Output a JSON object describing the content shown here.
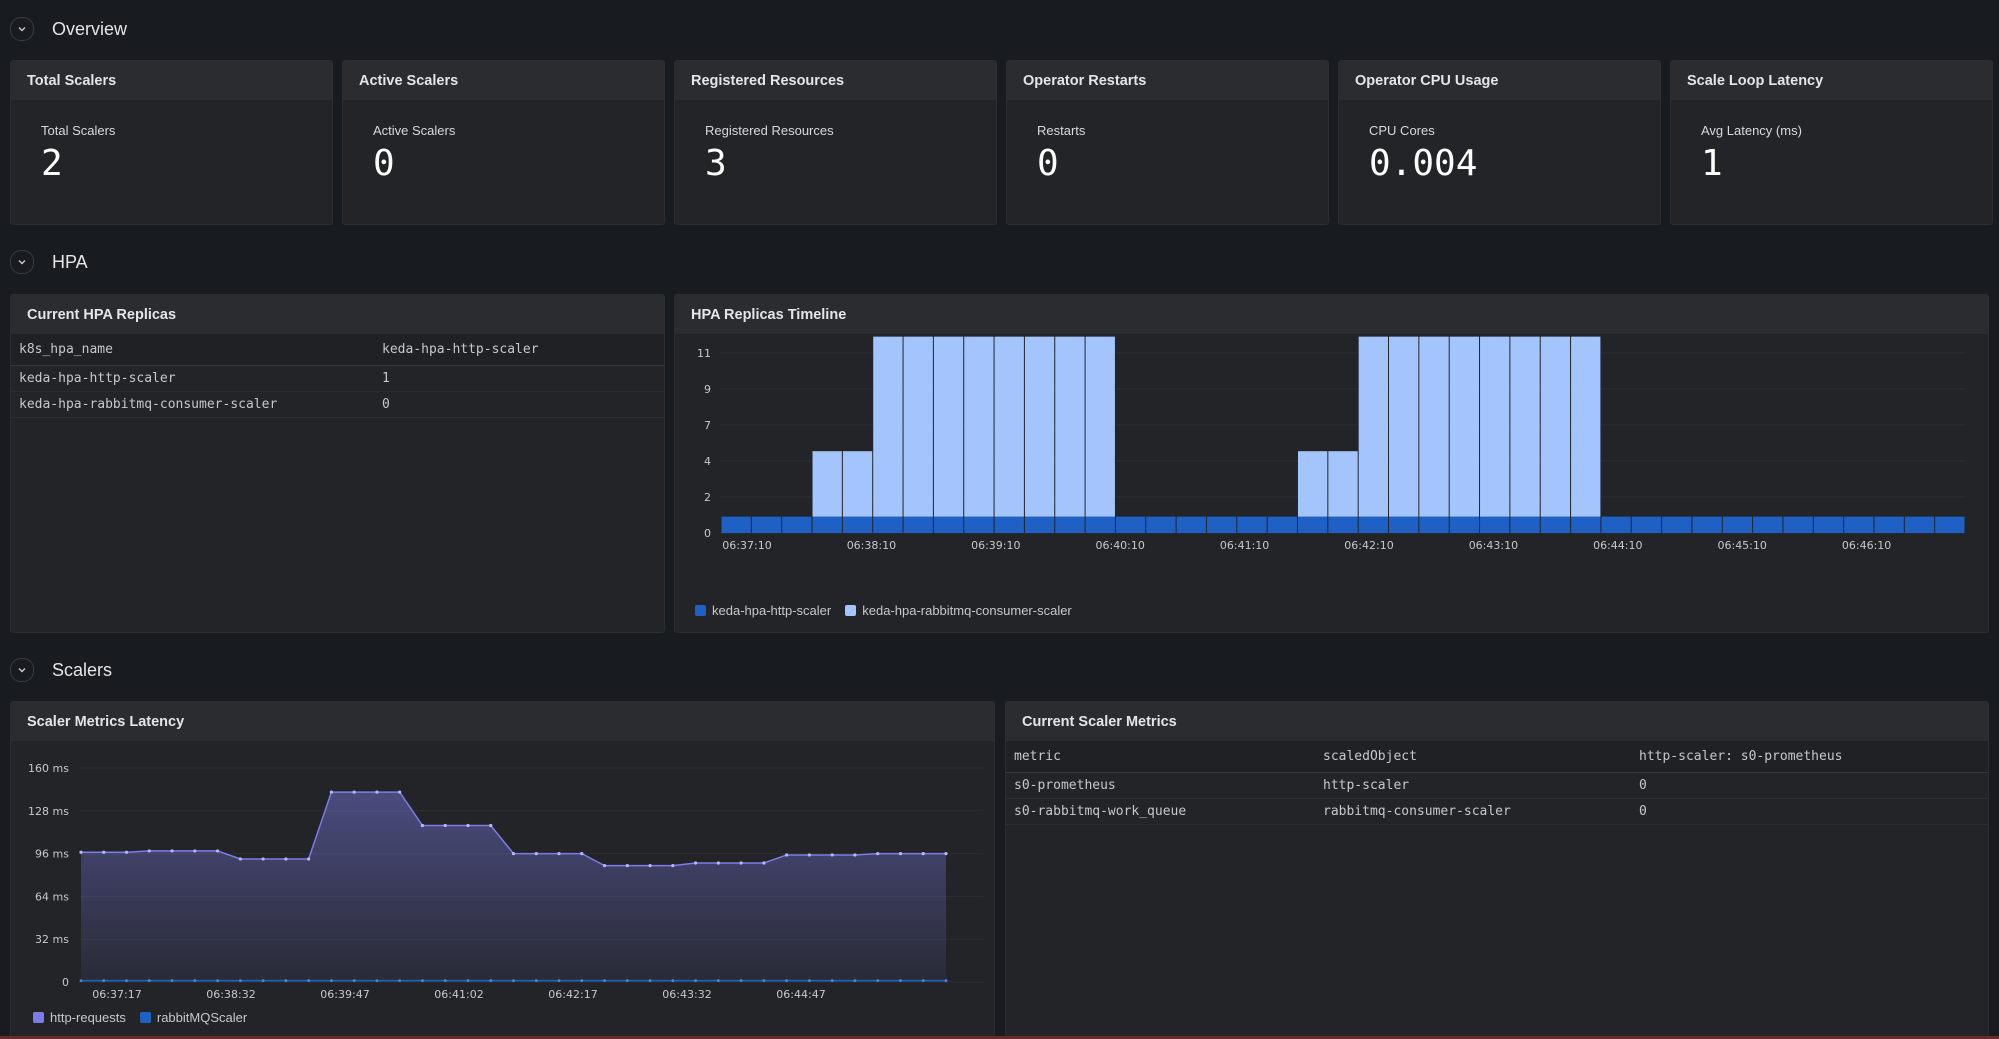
{
  "rows": {
    "overview": "Overview",
    "hpa": "HPA",
    "scalers": "Scalers"
  },
  "stats": [
    {
      "title": "Total Scalers",
      "label": "Total Scalers",
      "value": "2"
    },
    {
      "title": "Active Scalers",
      "label": "Active Scalers",
      "value": "0"
    },
    {
      "title": "Registered Resources",
      "label": "Registered Resources",
      "value": "3"
    },
    {
      "title": "Operator Restarts",
      "label": "Restarts",
      "value": "0"
    },
    {
      "title": "Operator CPU Usage",
      "label": "CPU Cores",
      "value": "0.004"
    },
    {
      "title": "Scale Loop Latency",
      "label": "Avg Latency (ms)",
      "value": "1"
    }
  ],
  "hpa_table": {
    "title": "Current HPA Replicas",
    "headers": [
      "k8s_hpa_name",
      "keda-hpa-http-scaler"
    ],
    "rows": [
      [
        "keda-hpa-http-scaler",
        "1"
      ],
      [
        "keda-hpa-rabbitmq-consumer-scaler",
        "0"
      ]
    ]
  },
  "scaler_table": {
    "title": "Current Scaler Metrics",
    "headers": [
      "metric",
      "scaledObject",
      "http-scaler: s0-prometheus"
    ],
    "rows": [
      [
        "s0-prometheus",
        "http-scaler",
        "0"
      ],
      [
        "s0-rabbitmq-work_queue",
        "rabbitmq-consumer-scaler",
        "0"
      ]
    ]
  },
  "colors": {
    "dark_blue": "#1f60c4",
    "light_blue": "#a3c4fd",
    "purple": "#7c7ce8",
    "bg": "#181b1f"
  },
  "chart_data": [
    {
      "type": "bar",
      "title": "HPA Replicas Timeline",
      "ylim": [
        0,
        11
      ],
      "yticks": [
        "0",
        "2",
        "4",
        "7",
        "9",
        "11"
      ],
      "ytick_values": [
        0,
        2.2,
        4.4,
        6.6,
        8.8,
        11
      ],
      "xticks": [
        "06:37:10",
        "06:38:10",
        "06:39:10",
        "06:40:10",
        "06:41:10",
        "06:42:10",
        "06:43:10",
        "06:44:10",
        "06:45:10",
        "06:46:10"
      ],
      "stacked": true,
      "series": [
        {
          "name": "keda-hpa-http-scaler",
          "color": "#1f60c4",
          "values": [
            1,
            1,
            1,
            1,
            1,
            1,
            1,
            1,
            1,
            1,
            1,
            1,
            1,
            1,
            1,
            1,
            1,
            1,
            1,
            1,
            1,
            1,
            1,
            1,
            1,
            1,
            1,
            1,
            1,
            1,
            1,
            1,
            1,
            1,
            1,
            1,
            1,
            1,
            1,
            1,
            1
          ]
        },
        {
          "name": "keda-hpa-rabbitmq-consumer-scaler",
          "color": "#a3c4fd",
          "values": [
            0,
            0,
            0,
            4,
            4,
            11,
            11,
            11,
            11,
            11,
            11,
            11,
            11,
            0,
            0,
            0,
            0,
            0,
            0,
            4,
            4,
            11,
            11,
            11,
            11,
            11,
            11,
            11,
            11,
            0,
            0,
            0,
            0,
            0,
            0,
            0,
            0,
            0,
            0,
            0,
            0
          ]
        }
      ]
    },
    {
      "type": "area",
      "title": "Scaler Metrics Latency",
      "ylim": [
        0,
        160
      ],
      "yticks": [
        "0",
        "32 ms",
        "64 ms",
        "96 ms",
        "128 ms",
        "160 ms"
      ],
      "ytick_values": [
        0,
        32,
        64,
        96,
        128,
        160
      ],
      "xticks": [
        "06:37:17",
        "06:38:32",
        "06:39:47",
        "06:41:02",
        "06:42:17",
        "06:43:32",
        "06:44:47"
      ],
      "series": [
        {
          "name": "http-requests",
          "color": "#7c7ce8",
          "values": [
            97,
            97,
            97,
            98,
            98,
            98,
            98,
            92,
            92,
            92,
            92,
            142,
            142,
            142,
            142,
            117,
            117,
            117,
            117,
            96,
            96,
            96,
            96,
            87,
            87,
            87,
            87,
            89,
            89,
            89,
            89,
            95,
            95,
            95,
            95,
            96,
            96,
            96,
            96
          ]
        },
        {
          "name": "rabbitMQScaler",
          "color": "#1f60c4",
          "values": [
            1,
            1,
            1,
            1,
            1,
            1,
            1,
            1,
            1,
            1,
            1,
            1,
            1,
            1,
            1,
            1,
            1,
            1,
            1,
            1,
            1,
            1,
            1,
            1,
            1,
            1,
            1,
            1,
            1,
            1,
            1,
            1,
            1,
            1,
            1,
            1,
            1,
            1,
            1
          ]
        }
      ]
    }
  ]
}
